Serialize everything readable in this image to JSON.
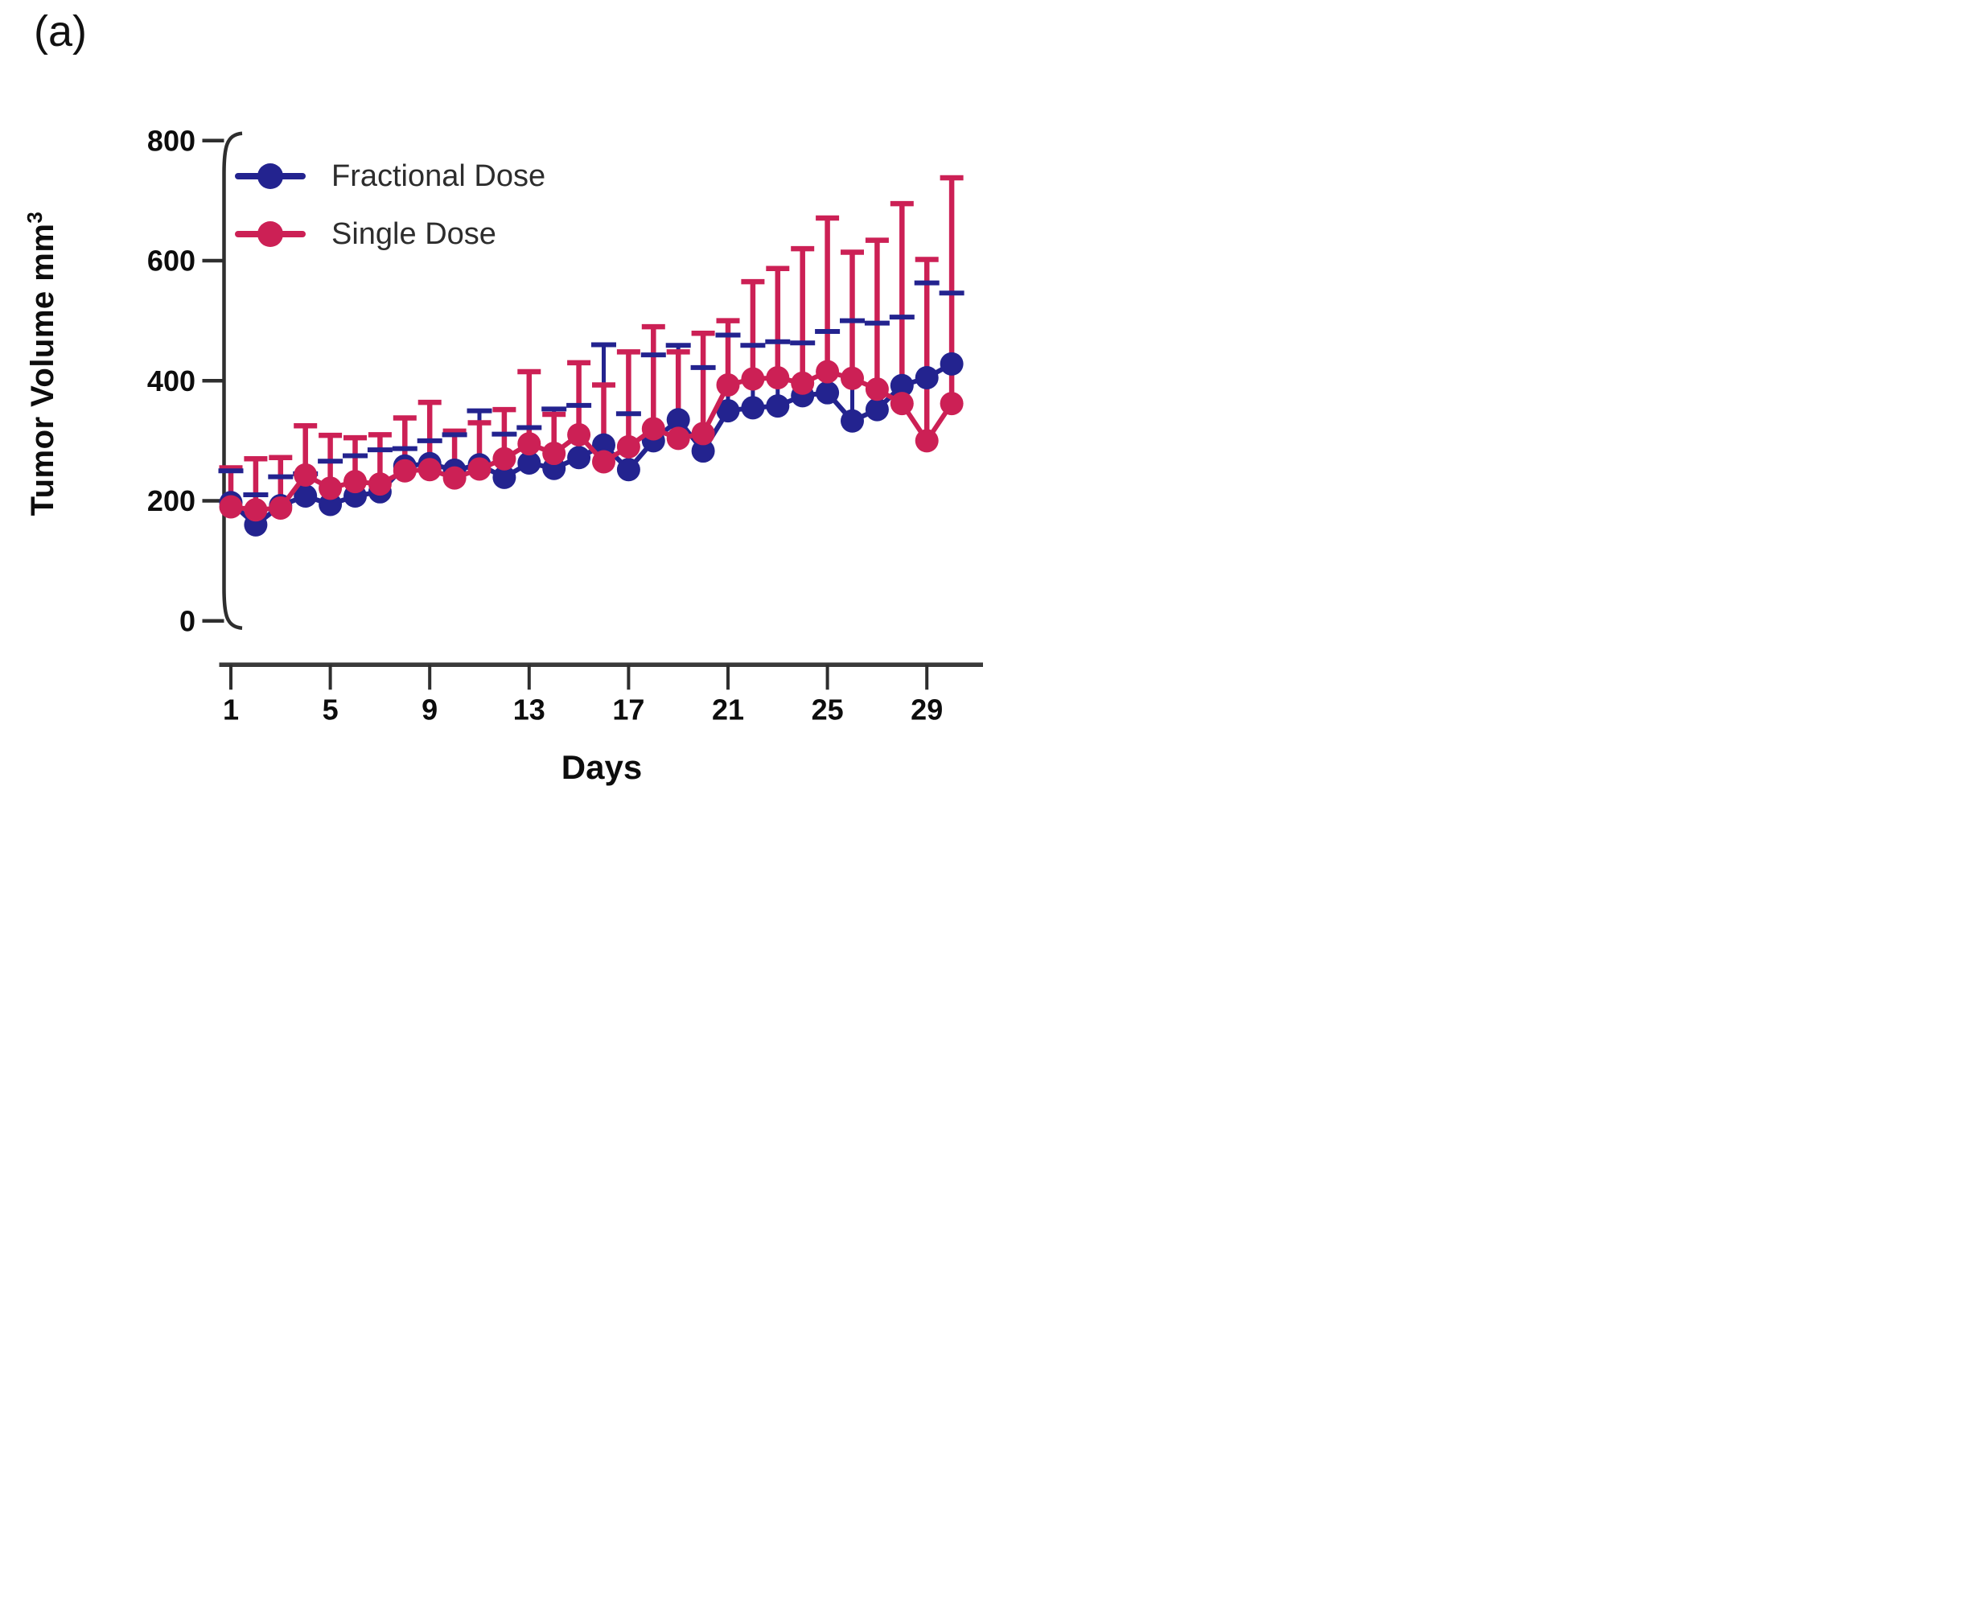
{
  "figure": {
    "panel_label": "(a)"
  },
  "chart_data": {
    "type": "line",
    "title": "",
    "xlabel": "Days",
    "ylabel": "Tumor Volume mm",
    "ylabel_superscript": "3",
    "x_ticks": [
      1,
      5,
      9,
      13,
      17,
      21,
      25,
      29
    ],
    "y_ticks": [
      0,
      200,
      400,
      600,
      800
    ],
    "xlim": [
      1,
      30
    ],
    "ylim": [
      0,
      800
    ],
    "grid": "off",
    "legend_position": "top-left-inside",
    "error_bars": "upper-only",
    "x": [
      1,
      2,
      3,
      4,
      5,
      6,
      7,
      8,
      9,
      10,
      11,
      12,
      13,
      14,
      15,
      16,
      17,
      18,
      19,
      20,
      21,
      22,
      23,
      24,
      25,
      26,
      27,
      28,
      29,
      30
    ],
    "series": [
      {
        "name": "Fractional Dose",
        "color": "#23238f",
        "values": [
          197,
          160,
          192,
          208,
          194,
          208,
          215,
          258,
          262,
          251,
          260,
          239,
          263,
          254,
          272,
          293,
          252,
          300,
          335,
          283,
          350,
          355,
          358,
          375,
          380,
          333,
          352,
          392,
          405,
          428
        ],
        "upper_error_tops": [
          250,
          210,
          240,
          245,
          266,
          275,
          285,
          287,
          300,
          310,
          350,
          311,
          322,
          353,
          359,
          460,
          345,
          443,
          459,
          422,
          476,
          459,
          465,
          463,
          482,
          500,
          496,
          506,
          563,
          546
        ]
      },
      {
        "name": "Single Dose",
        "color": "#cc2055",
        "values": [
          190,
          185,
          188,
          243,
          221,
          232,
          228,
          250,
          252,
          238,
          253,
          270,
          295,
          279,
          310,
          265,
          290,
          320,
          304,
          312,
          393,
          403,
          405,
          396,
          415,
          404,
          386,
          362,
          300,
          362
        ],
        "upper_error_tops": [
          255,
          270,
          272,
          325,
          309,
          305,
          310,
          338,
          364,
          316,
          330,
          352,
          415,
          344,
          430,
          393,
          448,
          490,
          448,
          479,
          500,
          565,
          587,
          620,
          671,
          614,
          634,
          695,
          602,
          738
        ]
      }
    ]
  }
}
